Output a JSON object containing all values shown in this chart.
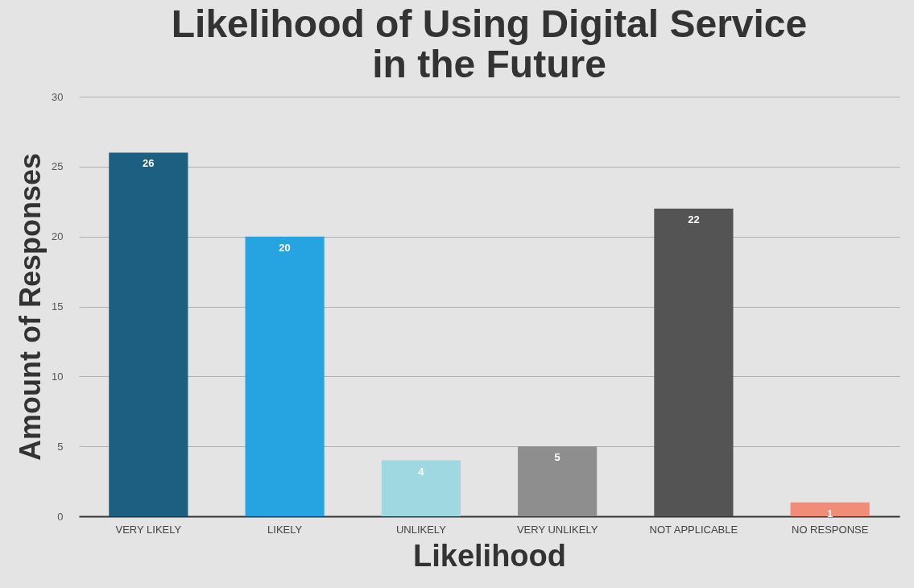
{
  "chart_data": {
    "type": "bar",
    "title": "Likelihood of Using Digital Service in the Future",
    "xlabel": "Likelihood",
    "ylabel": "Amount of Responses",
    "categories": [
      "VERY LIKELY",
      "LIKELY",
      "UNLIKELY",
      "VERY UNLIKELY",
      "NOT APPLICABLE",
      "NO RESPONSE"
    ],
    "values": [
      26,
      20,
      4,
      5,
      22,
      1
    ],
    "colors": [
      "#1d5f80",
      "#25a4e1",
      "#9fd8e1",
      "#8e8e8e",
      "#545454",
      "#f08c78"
    ],
    "ylim": [
      0,
      30
    ],
    "yticks": [
      0,
      5,
      10,
      15,
      20,
      25,
      30
    ],
    "grid": "y",
    "data_labels": true,
    "legend": false
  }
}
